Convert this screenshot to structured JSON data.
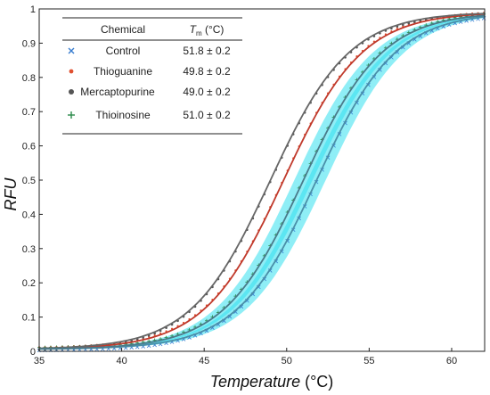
{
  "chart_data": {
    "type": "line",
    "xlabel": "Temperature",
    "xunit": "(°C)",
    "ylabel": "RFU",
    "xlim": [
      35,
      62
    ],
    "ylim": [
      0,
      1
    ],
    "xticks": [
      35,
      40,
      45,
      50,
      55,
      60
    ],
    "yticks": [
      0,
      0.1,
      0.2,
      0.3,
      0.4,
      0.5,
      0.6,
      0.7,
      0.8,
      0.9,
      1
    ],
    "legend": {
      "placement": "top-left",
      "header_chemical": "Chemical",
      "header_tm": "T",
      "header_tm_sub": "m",
      "header_tm_unit": "(°C)"
    },
    "series": [
      {
        "name": "Control",
        "tm_label": "51.8 ± 0.2",
        "tm": 51.8,
        "marker": "×",
        "marker_color": "#3a7fd0",
        "curve_color": "#4a8fa8",
        "band_color": "#33e0ee"
      },
      {
        "name": "Thioguanine",
        "tm_label": "49.8 ± 0.2",
        "tm": 49.8,
        "marker": "•",
        "marker_color": "#e05030",
        "curve_color": "#c0392b",
        "band_color": "#33e0ee"
      },
      {
        "name": "Mercaptopurine",
        "tm_label": "49.0 ± 0.2",
        "tm": 49.0,
        "marker": "●",
        "marker_color": "#555555",
        "curve_color": "#666666",
        "band_color": "#33e0ee"
      },
      {
        "name": "Thioinosine",
        "tm_label": "51.0 ± 0.2",
        "tm": 51.0,
        "marker": "+",
        "marker_color": "#2a8a4a",
        "curve_color": "#4a7a8a",
        "band_color": "#33e0ee"
      }
    ]
  }
}
